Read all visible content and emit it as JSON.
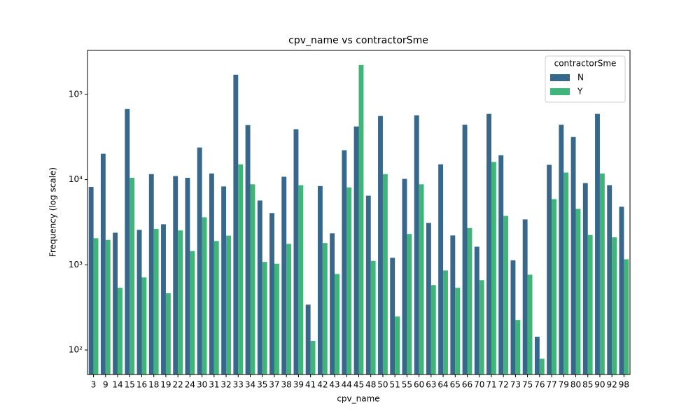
{
  "chart_data": {
    "type": "bar",
    "title": "cpv_name vs contractorSme",
    "x_label": "cpv_name",
    "y_label": "Frequency (log scale)",
    "legend_title": "contractorSme",
    "legend_position": "upper right",
    "log_scale": true,
    "categories": [
      "3",
      "9",
      "14",
      "15",
      "16",
      "18",
      "19",
      "22",
      "24",
      "30",
      "31",
      "32",
      "33",
      "34",
      "35",
      "37",
      "38",
      "39",
      "41",
      "42",
      "43",
      "44",
      "45",
      "48",
      "50",
      "51",
      "55",
      "60",
      "63",
      "64",
      "65",
      "66",
      "70",
      "71",
      "72",
      "73",
      "75",
      "76",
      "77",
      "79",
      "80",
      "85",
      "90",
      "92",
      "98"
    ],
    "series": [
      {
        "name": "N",
        "color": "#38678c",
        "values": [
          8200,
          20100,
          2380,
          67300,
          2570,
          11600,
          2990,
          11000,
          10500,
          23800,
          11800,
          8300,
          170000,
          43600,
          5680,
          4050,
          10800,
          39000,
          341,
          8400,
          2340,
          22100,
          42000,
          6470,
          55700,
          1210,
          10200,
          56800,
          3100,
          15100,
          2210,
          44000,
          1630,
          59000,
          19300,
          1130,
          3410,
          143,
          14900,
          44000,
          31600,
          9100,
          59000,
          8600,
          4800
        ]
      },
      {
        "name": "Y",
        "color": "#3fb57a",
        "values": [
          2050,
          1960,
          537,
          10500,
          711,
          2640,
          464,
          2530,
          1450,
          3610,
          1900,
          2200,
          15100,
          8800,
          1080,
          1030,
          1760,
          8600,
          128,
          1800,
          780,
          8100,
          221000,
          1110,
          11600,
          247,
          2300,
          8800,
          578,
          858,
          537,
          2700,
          660,
          16100,
          3750,
          225,
          765,
          79,
          5900,
          12100,
          4530,
          2240,
          11800,
          2100,
          1160
        ]
      }
    ],
    "ylim": [
      51.6,
      328000
    ],
    "yticks": [
      {
        "value": 100,
        "label": "10²"
      },
      {
        "value": 1000,
        "label": "10³"
      },
      {
        "value": 10000,
        "label": "10⁴"
      },
      {
        "value": 100000,
        "label": "10⁵"
      }
    ]
  }
}
